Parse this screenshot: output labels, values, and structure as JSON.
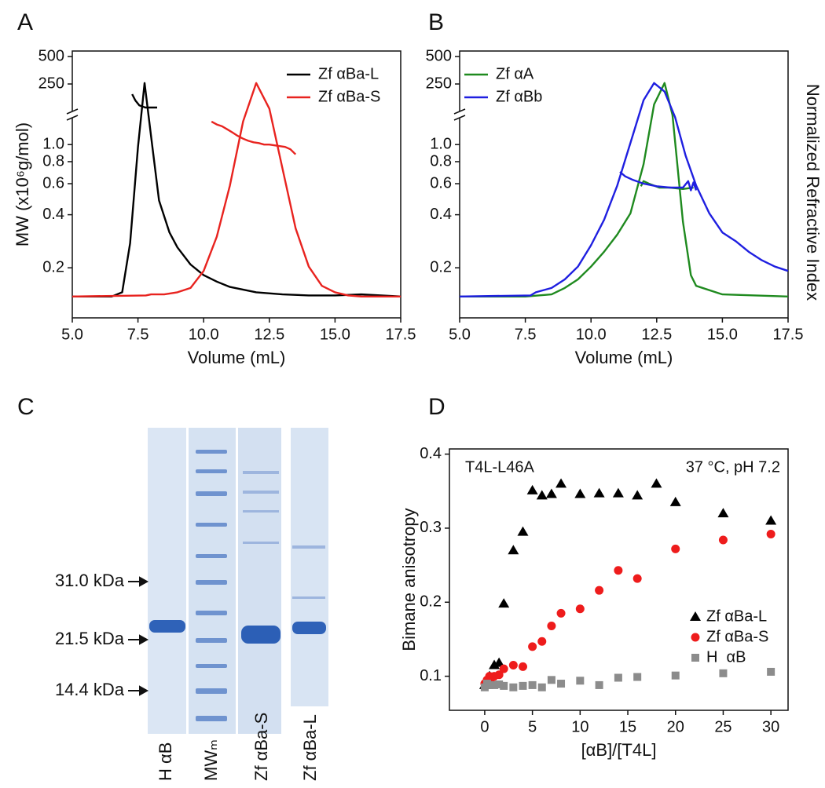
{
  "chart_data": [
    {
      "panel": "A",
      "type": "line",
      "x_label": "Volume (mL)",
      "y_label": "MW (x10⁶g/mol)",
      "xlim": [
        5,
        17.5
      ],
      "xticks": [
        {
          "value": 5,
          "label": "5.0"
        },
        {
          "value": 7.5,
          "label": "7.5"
        },
        {
          "value": 10,
          "label": "10.0"
        },
        {
          "value": 12.5,
          "label": "12.5"
        },
        {
          "value": 15,
          "label": "15.0"
        },
        {
          "value": 17.5,
          "label": "17.5"
        }
      ],
      "ylim": [
        0.104,
        1.42
      ],
      "y_log": true,
      "yticks": [
        0.2,
        0.4,
        0.6,
        0.8,
        {
          "value": 1,
          "label": "1.0"
        }
      ],
      "y_upper_lim": [
        0,
        550
      ],
      "y_upper_ticks": [
        250,
        500
      ],
      "y2lim": [
        -0.1,
        1.15
      ],
      "legend": "upper right",
      "series": [
        {
          "name": "Zf αBa-L",
          "color": "#000000",
          "axis": "y2",
          "x": [
            5,
            6.5,
            6.9,
            7.2,
            7.5,
            7.75,
            8.0,
            8.3,
            8.7,
            9.0,
            9.5,
            10,
            10.5,
            11,
            12,
            13,
            14,
            15,
            16,
            17.5
          ],
          "values": [
            0,
            0,
            0.02,
            0.25,
            0.7,
            1.0,
            0.75,
            0.45,
            0.3,
            0.23,
            0.15,
            0.1,
            0.07,
            0.045,
            0.02,
            0.01,
            0.005,
            0.005,
            0.01,
            0
          ]
        },
        {
          "color": "#000000",
          "axis": "y_upper",
          "x": [
            7.28,
            7.4,
            7.55,
            7.78,
            8.23
          ],
          "values": [
            157,
            100,
            55,
            36,
            36
          ]
        },
        {
          "name": "Zf αBa-S",
          "color": "#e8231f",
          "axis": "y2",
          "x": [
            5,
            7.8,
            8.0,
            8.5,
            9.0,
            9.5,
            10,
            10.5,
            11,
            11.5,
            12,
            12.5,
            13,
            13.5,
            14,
            14.5,
            15,
            15.5,
            16,
            17.5
          ],
          "values": [
            0,
            0.005,
            0.01,
            0.01,
            0.02,
            0.04,
            0.12,
            0.28,
            0.52,
            0.82,
            1.0,
            0.88,
            0.6,
            0.32,
            0.14,
            0.05,
            0.02,
            0.005,
            0,
            0
          ]
        },
        {
          "color": "#e8231f",
          "axis": "y",
          "x": [
            10.3,
            10.5,
            10.7,
            10.9,
            11.1,
            11.3,
            11.5,
            11.7,
            11.9,
            12.1,
            12.3,
            12.5,
            12.7,
            12.9,
            13.1,
            13.3,
            13.5
          ],
          "values": [
            1.35,
            1.3,
            1.27,
            1.22,
            1.17,
            1.12,
            1.08,
            1.05,
            1.03,
            1.02,
            1.0,
            1.0,
            0.99,
            0.98,
            0.97,
            0.94,
            0.88
          ]
        }
      ]
    },
    {
      "panel": "B",
      "type": "line",
      "x_label": "Volume (mL)",
      "y2_label": "Normalized Refractive Index",
      "xlim": [
        5,
        17.5
      ],
      "xticks": [
        {
          "value": 5,
          "label": "5.0"
        },
        {
          "value": 7.5,
          "label": "7.5"
        },
        {
          "value": 10,
          "label": "10.0"
        },
        {
          "value": 12.5,
          "label": "12.5"
        },
        {
          "value": 15,
          "label": "15.0"
        },
        {
          "value": 17.5,
          "label": "17.5"
        }
      ],
      "ylim": [
        0.104,
        1.42
      ],
      "y_log": true,
      "yticks": [
        0.2,
        0.4,
        0.6,
        0.8,
        {
          "value": 1,
          "label": "1.0"
        }
      ],
      "y_upper_lim": [
        0,
        550
      ],
      "y_upper_ticks": [
        250,
        500
      ],
      "y2lim": [
        -0.1,
        1.15
      ],
      "legend": "upper left",
      "series": [
        {
          "name": "Zf αA",
          "color": "#1f8a1f",
          "axis": "y2",
          "x": [
            5,
            7.5,
            8.5,
            9,
            9.5,
            10,
            10.5,
            11,
            11.5,
            12,
            12.4,
            12.8,
            13.1,
            13.5,
            13.8,
            14,
            15,
            17.5
          ],
          "values": [
            0,
            0,
            0.01,
            0.04,
            0.08,
            0.14,
            0.21,
            0.29,
            0.39,
            0.62,
            0.9,
            1.0,
            0.85,
            0.35,
            0.1,
            0.05,
            0.01,
            0
          ]
        },
        {
          "color": "#1f8a1f",
          "axis": "y",
          "x": [
            11.9,
            12.0,
            12.2,
            12.6,
            13.0,
            13.5,
            13.9
          ],
          "values": [
            0.58,
            0.62,
            0.6,
            0.57,
            0.57,
            0.56,
            0.57
          ]
        },
        {
          "name": "Zf αBb",
          "color": "#1f1fe0",
          "axis": "y2",
          "x": [
            5,
            7.7,
            7.9,
            8.5,
            9,
            9.5,
            10,
            10.5,
            11,
            11.5,
            12,
            12.4,
            12.8,
            13.2,
            13.6,
            14,
            14.5,
            15,
            15.5,
            16,
            16.5,
            17,
            17.5
          ],
          "values": [
            0,
            0.005,
            0.02,
            0.04,
            0.08,
            0.14,
            0.24,
            0.36,
            0.52,
            0.72,
            0.92,
            1.0,
            0.96,
            0.84,
            0.66,
            0.52,
            0.39,
            0.3,
            0.26,
            0.21,
            0.17,
            0.14,
            0.12
          ]
        },
        {
          "color": "#1f1fe0",
          "axis": "y",
          "x": [
            11.1,
            11.3,
            11.6,
            12.0,
            12.5,
            13.0,
            13.5,
            13.7,
            13.8,
            13.9,
            14.0
          ],
          "values": [
            0.7,
            0.66,
            0.63,
            0.6,
            0.58,
            0.57,
            0.57,
            0.62,
            0.55,
            0.61,
            0.55
          ]
        }
      ]
    },
    {
      "panel": "D",
      "type": "scatter",
      "x_label": "[αB]/[T4L]",
      "y_label": "Bimane anisotropy",
      "annotations": [
        "T4L-L46A",
        "37 °C, pH 7.2"
      ],
      "xlim": [
        -3.7,
        31.8
      ],
      "xticks": [
        0,
        5,
        10,
        15,
        20,
        25,
        30
      ],
      "ylim": [
        0.054,
        0.407
      ],
      "yticks": [
        0.1,
        0.2,
        0.3,
        0.4
      ],
      "legend": "lower right",
      "series": [
        {
          "name": "Zf αBa-L",
          "color": "#000000",
          "marker": "triangle",
          "x": [
            0,
            0.5,
            1,
            1.5,
            2,
            3,
            4,
            5,
            6,
            7,
            8,
            10,
            12,
            14,
            16,
            18,
            20,
            25,
            30
          ],
          "values": [
            0.088,
            0.1,
            0.115,
            0.118,
            0.198,
            0.27,
            0.295,
            0.351,
            0.344,
            0.346,
            0.36,
            0.346,
            0.347,
            0.347,
            0.344,
            0.36,
            0.335,
            0.32,
            0.31
          ]
        },
        {
          "name": "Zf αBa-S",
          "color": "#ee1c1c",
          "marker": "circle",
          "x": [
            0,
            0.25,
            0.5,
            0.75,
            1,
            1.5,
            2,
            3,
            4,
            5,
            6,
            7,
            8,
            10,
            12,
            14,
            16,
            20,
            25,
            30
          ],
          "values": [
            0.09,
            0.095,
            0.1,
            0.098,
            0.1,
            0.102,
            0.11,
            0.115,
            0.113,
            0.14,
            0.147,
            0.168,
            0.185,
            0.191,
            0.216,
            0.243,
            0.232,
            0.272,
            0.284,
            0.292
          ]
        },
        {
          "name": "H  αB",
          "color": "#8c8c8c",
          "marker": "square",
          "x": [
            0,
            0.25,
            0.5,
            1,
            1.5,
            2,
            3,
            4,
            5,
            6,
            7,
            8,
            10,
            12,
            14,
            16,
            20,
            25,
            30
          ],
          "values": [
            0.085,
            0.09,
            0.088,
            0.088,
            0.089,
            0.087,
            0.085,
            0.087,
            0.088,
            0.085,
            0.095,
            0.09,
            0.094,
            0.088,
            0.098,
            0.099,
            0.101,
            0.104,
            0.106
          ]
        }
      ]
    }
  ],
  "gel": {
    "panel": "C",
    "markers": [
      "31.0 kDa",
      "21.5 kDa",
      "14.4 kDa"
    ],
    "lanes": [
      "H αB",
      "MWₘ",
      "Zf αBa-S",
      "Zf αBa-L"
    ]
  }
}
